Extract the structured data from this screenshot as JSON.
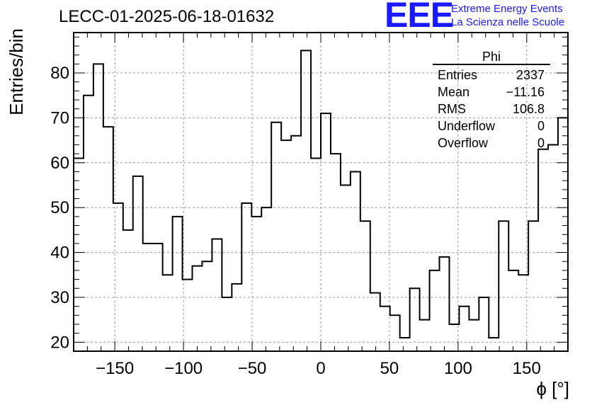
{
  "chart_data": {
    "type": "histogram",
    "title": "LECC-01-2025-06-18-01632",
    "xlabel": "ϕ [°]",
    "ylabel": "Entries/bin",
    "xlim": [
      -180,
      180
    ],
    "ylim": [
      18,
      89
    ],
    "bin_width": 7.2,
    "x_ticks": [
      -150,
      -100,
      -50,
      0,
      50,
      100,
      150
    ],
    "x_tick_labels": [
      "−150",
      "−100",
      "−50",
      "0",
      "50",
      "100",
      "150"
    ],
    "y_ticks": [
      20,
      30,
      40,
      50,
      60,
      70,
      80
    ],
    "y_tick_labels": [
      "20",
      "30",
      "40",
      "50",
      "60",
      "70",
      "80"
    ],
    "values": [
      61,
      75,
      82,
      68,
      51,
      45,
      57,
      42,
      42,
      35,
      48,
      34,
      37,
      38,
      43,
      30,
      33,
      51,
      48,
      50,
      69,
      65,
      66,
      85,
      61,
      71,
      62,
      55,
      58,
      47,
      31,
      28,
      26,
      21,
      32,
      25,
      36,
      39,
      24,
      28,
      25,
      30,
      21,
      47,
      36,
      35,
      47,
      63,
      64,
      70
    ],
    "grid": true,
    "line_color": "#000000",
    "grid_color": "#999999"
  },
  "stats_box": {
    "title": "Phi",
    "rows": [
      {
        "label": "Entries",
        "value": "2337"
      },
      {
        "label": "Mean",
        "value": "−11.16"
      },
      {
        "label": "RMS",
        "value": "106.8"
      },
      {
        "label": "Underflow",
        "value": "0"
      },
      {
        "label": "Overflow",
        "value": "0"
      }
    ]
  },
  "logo": {
    "mark": "EEE",
    "line1": "Extreme Energy Events",
    "line2": "La Scienza nelle Scuole",
    "color": "#1a1aff"
  }
}
